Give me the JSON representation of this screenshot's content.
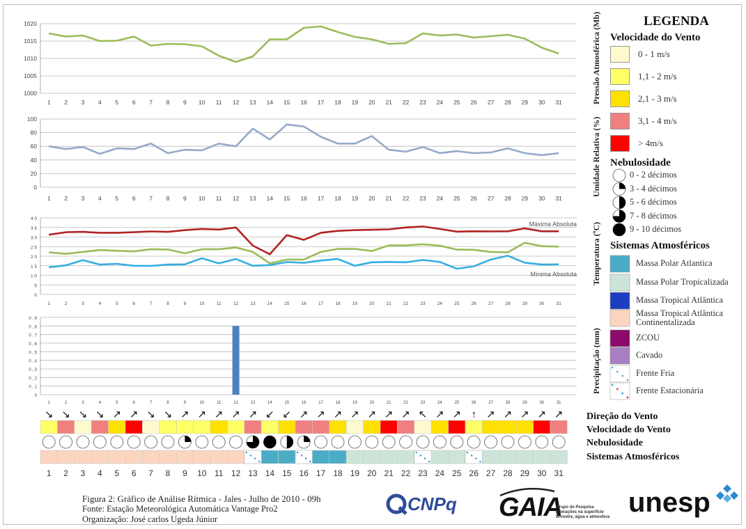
{
  "days": [
    "1",
    "2",
    "3",
    "4",
    "5",
    "6",
    "7",
    "8",
    "9",
    "10",
    "11",
    "12",
    "13",
    "14",
    "15",
    "16",
    "17",
    "18",
    "19",
    "20",
    "21",
    "22",
    "23",
    "24",
    "25",
    "26",
    "27",
    "28",
    "29",
    "30",
    "31"
  ],
  "colors": {
    "pressure": "#9bbb59",
    "humidity": "#95a9c9",
    "temp_max": "#b22222",
    "temp_mid": "#9bbb59",
    "temp_min": "#34aee0",
    "precip": "#4f81bd",
    "wind_0_1": "#fffacd",
    "wind_1_2": "#ffff66",
    "wind_2_3": "#ffe100",
    "wind_3_4": "#f08080",
    "wind_gt4": "#ff0000",
    "mpa": "#4bacc6",
    "mpt": "#cce5d8",
    "mta": "#1f3dbf",
    "mtac": "#fcd5c0",
    "zcou": "#8b0a6b",
    "cavado": "#a87fc0"
  },
  "chart_data": [
    {
      "type": "line",
      "ylabel": "Pressão Atmosférica (Mb)",
      "x": [
        1,
        2,
        3,
        4,
        5,
        6,
        7,
        8,
        9,
        10,
        11,
        12,
        13,
        14,
        15,
        16,
        17,
        18,
        19,
        20,
        21,
        22,
        23,
        24,
        25,
        26,
        27,
        28,
        29,
        30,
        31
      ],
      "ylim": [
        1000,
        1020
      ],
      "yticks": [
        "1020",
        "1015",
        "1010",
        "1005",
        "1000"
      ],
      "series": [
        {
          "values": [
            1017.2,
            1016.3,
            1016.6,
            1015,
            1015.1,
            1016.3,
            1013.7,
            1014.2,
            1014.1,
            1013.5,
            1010.8,
            1009,
            1010.6,
            1015.5,
            1015.5,
            1018.8,
            1019.2,
            1017.6,
            1016.2,
            1015.5,
            1014.2,
            1014.4,
            1017.2,
            1016.6,
            1016.9,
            1016,
            1016.4,
            1016.8,
            1015.7,
            1013.1,
            1011.4
          ]
        }
      ]
    },
    {
      "type": "line",
      "ylabel": "Umidade Relativa (%)",
      "x": [
        1,
        2,
        3,
        4,
        5,
        6,
        7,
        8,
        9,
        10,
        11,
        12,
        13,
        14,
        15,
        16,
        17,
        18,
        19,
        20,
        21,
        22,
        23,
        24,
        25,
        26,
        27,
        28,
        29,
        30,
        31
      ],
      "ylim": [
        0,
        100
      ],
      "yticks": [
        "100",
        "80",
        "60",
        "40",
        "20",
        "0"
      ],
      "series": [
        {
          "values": [
            60,
            56,
            59,
            49,
            57,
            56,
            64,
            50,
            55,
            54,
            64,
            60,
            86,
            70,
            92,
            89,
            74,
            64,
            64,
            75,
            55,
            52,
            59,
            50,
            53,
            50,
            51,
            57,
            50,
            47,
            50
          ]
        }
      ]
    },
    {
      "type": "line",
      "ylabel": "Temperatura (ºC)",
      "x": [
        1,
        2,
        3,
        4,
        5,
        6,
        7,
        8,
        9,
        10,
        11,
        12,
        13,
        14,
        15,
        16,
        17,
        18,
        19,
        20,
        21,
        22,
        23,
        24,
        25,
        26,
        27,
        28,
        29,
        30,
        31
      ],
      "ylim": [
        0,
        4
      ],
      "yticks": [
        "4 0",
        "3 5",
        "3 0",
        "2 5",
        "2 0",
        "1 5",
        "1 0",
        "5",
        "0"
      ],
      "annotations": [
        "Máxima Absoluta",
        "Mínima Absoluta"
      ],
      "series": [
        {
          "values": [
            3.12,
            3.25,
            3.27,
            3.22,
            3.22,
            3.25,
            3.29,
            3.27,
            3.36,
            3.42,
            3.39,
            3.5,
            2.55,
            2.1,
            3.1,
            2.85,
            3.22,
            3.32,
            3.36,
            3.38,
            3.4,
            3.5,
            3.55,
            3.42,
            3.28,
            3.3,
            3.29,
            3.3,
            3.45,
            3.3,
            3.3
          ]
        },
        {
          "values": [
            2.2,
            2.12,
            2.22,
            2.32,
            2.28,
            2.25,
            2.36,
            2.35,
            2.15,
            2.36,
            2.36,
            2.45,
            2.22,
            1.62,
            1.82,
            1.82,
            2.22,
            2.38,
            2.38,
            2.27,
            2.56,
            2.56,
            2.62,
            2.55,
            2.34,
            2.33,
            2.22,
            2.2,
            2.7,
            2.52,
            2.5
          ]
        },
        {
          "values": [
            1.42,
            1.52,
            1.79,
            1.56,
            1.6,
            1.5,
            1.49,
            1.56,
            1.57,
            1.89,
            1.62,
            1.85,
            1.5,
            1.53,
            1.69,
            1.65,
            1.77,
            1.85,
            1.5,
            1.68,
            1.7,
            1.68,
            1.8,
            1.7,
            1.34,
            1.47,
            1.82,
            2.02,
            1.66,
            1.56,
            1.57
          ]
        }
      ]
    },
    {
      "type": "bar",
      "ylabel": "Precipitação (mm)",
      "x": [
        1,
        2,
        3,
        4,
        5,
        6,
        7,
        8,
        9,
        10,
        11,
        12,
        13,
        14,
        15,
        16,
        17,
        18,
        19,
        20,
        21,
        22,
        23,
        24,
        25,
        26,
        27,
        28,
        29,
        30,
        31
      ],
      "ylim": [
        0,
        0.9
      ],
      "yticks": [
        "0 , 9",
        "0 , 8",
        "0 , 7",
        "0 , 6",
        "0 , 5",
        "0 , 4",
        "0 , 3",
        "0 , 2",
        "0 , 1",
        "0"
      ],
      "series": [
        {
          "values": [
            0,
            0,
            0,
            0,
            0,
            0,
            0,
            0,
            0,
            0,
            0,
            0.8,
            0,
            0,
            0,
            0,
            0,
            0,
            0,
            0,
            0,
            0,
            0,
            0,
            0,
            0,
            0,
            0,
            0,
            0,
            0
          ]
        }
      ]
    }
  ],
  "rows": {
    "wind_dir_label": "Direção do Vento",
    "wind_speed_label": "Velocidade do Vento",
    "cloud_label": "Nebulosidade",
    "systems_label": "Sistemas Atmosféricos",
    "wind_dir": [
      "↘",
      "↘",
      "↘",
      "↘",
      "↗",
      "↗",
      "↘",
      "↘",
      "↗",
      "↗",
      "↗",
      "↗",
      "↗",
      "↙",
      "↙",
      "↗",
      "↗",
      "↗",
      "↗",
      "↗",
      "↗",
      "↗",
      "↖",
      "↗",
      "↗",
      "↑",
      "↗",
      "↗",
      "↗",
      "↗",
      "↗"
    ],
    "wind_speed": [
      "wind_1_2",
      "wind_3_4",
      "wind_0_1",
      "wind_3_4",
      "wind_2_3",
      "wind_gt4",
      "wind_0_1",
      "wind_1_2",
      "wind_1_2",
      "wind_1_2",
      "wind_2_3",
      "wind_1_2",
      "wind_3_4",
      "wind_1_2",
      "wind_2_3",
      "wind_3_4",
      "wind_3_4",
      "wind_2_3",
      "wind_0_1",
      "wind_2_3",
      "wind_gt4",
      "wind_3_4",
      "wind_0_1",
      "wind_2_3",
      "wind_gt4",
      "wind_1_2",
      "wind_2_3",
      "wind_2_3",
      "wind_2_3",
      "wind_gt4",
      "wind_3_4"
    ],
    "cloud_tenths": [
      0,
      0,
      0,
      0,
      0,
      0,
      0,
      0,
      3,
      0,
      0,
      0,
      7,
      9,
      5,
      3,
      0,
      0,
      0,
      0,
      0,
      0,
      0,
      0,
      0,
      0,
      0,
      0,
      0,
      0,
      0
    ],
    "systems": [
      "mtac",
      "mtac",
      "mtac",
      "mtac",
      "mtac",
      "mtac",
      "mtac",
      "mtac",
      "mtac",
      "mtac",
      "mtac",
      "mtac",
      "frente_fria",
      "mpa",
      "mpa",
      "frente_fria",
      "mpa",
      "mpa",
      "mpt",
      "mpt",
      "mpt",
      "mpt",
      "frente_fria",
      "mpt",
      "mpt",
      "frente_fria",
      "mpt",
      "mpt",
      "mpt",
      "mpt",
      "mpt"
    ]
  },
  "legend": {
    "title": "LEGENDA",
    "wind_title": "Velocidade do Vento",
    "wind_items": [
      {
        "key": "wind_0_1",
        "label": "0 - 1 m/s"
      },
      {
        "key": "wind_1_2",
        "label": "1,1 - 2 m/s"
      },
      {
        "key": "wind_2_3",
        "label": "2,1 - 3 m/s"
      },
      {
        "key": "wind_3_4",
        "label": "3,1 - 4 m/s"
      },
      {
        "key": "wind_gt4",
        "label": "> 4m/s"
      }
    ],
    "cloud_title": "Nebulosidade",
    "cloud_items": [
      {
        "tenths": 0,
        "label": "0 - 2 décimos"
      },
      {
        "tenths": 3,
        "label": "3 - 4 décimos"
      },
      {
        "tenths": 5,
        "label": "5 - 6 décimos"
      },
      {
        "tenths": 7,
        "label": "7 - 8 décimos"
      },
      {
        "tenths": 9,
        "label": "9 - 10 décimos"
      }
    ],
    "systems_title": "Sistemas Atmosféricos",
    "system_items": [
      {
        "key": "mpa",
        "label": "Massa Polar Atlantica"
      },
      {
        "key": "mpt",
        "label": "Massa Polar Tropicalizada"
      },
      {
        "key": "mta",
        "label": "Massa Tropical Atlântica"
      },
      {
        "key": "mtac",
        "label": "Massa Tropical Atlântica",
        "label2": "Continentalizada"
      },
      {
        "key": "zcou",
        "label": "ZCOU"
      },
      {
        "key": "cavado",
        "label": "Cavado"
      },
      {
        "key": "frente_fria",
        "label": "Frente Fria"
      },
      {
        "key": "frente_estacionaria",
        "label": "Frente Estacionária"
      }
    ]
  },
  "footer": {
    "line1": "Figura 2: Gráfico de Análise Rítmica - Jales - Julho de 2010 - 09h",
    "line2": "Fonte: Estação  Meteorológica Automática  Vantage Pro2",
    "line3": "Organização: José carlos Ugeda Júnior"
  },
  "logos": {
    "cnpq": "CNPq",
    "gaia": "GAIA",
    "gaia_sub1": "Grupo de Pesquisa",
    "gaia_sub2": "Interações na superfície",
    "gaia_sub3": "terrestre, água e atmosfera",
    "unesp": "unesp"
  }
}
